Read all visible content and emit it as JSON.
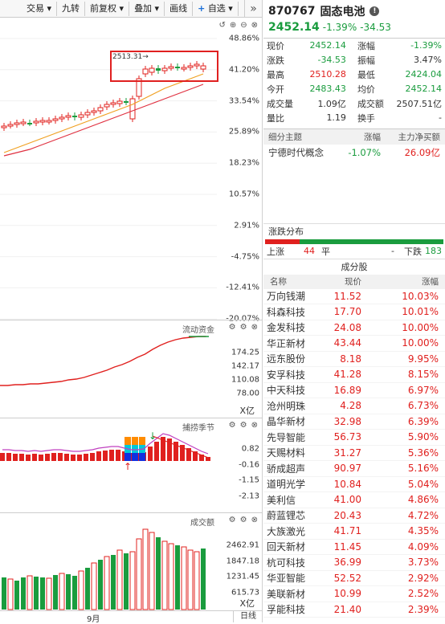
{
  "toolbar": {
    "trade": "交易 ▾",
    "nine": "九转",
    "adjust": "前复权 ▾",
    "overlay": "叠加 ▾",
    "draw": "画线",
    "watch": "自选",
    "more": "»"
  },
  "kline": {
    "y_ticks": [
      "48.86%",
      "41.20%",
      "33.54%",
      "25.89%",
      "18.23%",
      "10.57%",
      "2.91%",
      "-4.75%",
      "-12.41%",
      "-20.07%"
    ],
    "max_label": "2513.31",
    "highlight_color": "#e02020"
  },
  "fund": {
    "title": "流动资金",
    "ticks": [
      "174.25",
      "142.17",
      "110.08",
      "78.00"
    ],
    "unit": "X亿"
  },
  "cycle": {
    "title": "捕捞季节",
    "ticks": [
      "0.82",
      "-0.16",
      "-1.15",
      "-2.13"
    ]
  },
  "volume": {
    "title": "成交额",
    "ticks": [
      "2462.91",
      "1847.18",
      "1231.45",
      "615.73"
    ],
    "unit": "X亿"
  },
  "footer": {
    "month": "9月",
    "period": "日线"
  },
  "quote": {
    "code": "870767",
    "name": "固态电池",
    "info": "!",
    "price": "2452.14",
    "pct": "-1.39%",
    "chg": "-34.53",
    "rows": [
      {
        "k1": "现价",
        "v1": "2452.14",
        "c1": "green",
        "k2": "涨幅",
        "v2": "-1.39%",
        "c2": "green"
      },
      {
        "k1": "涨跌",
        "v1": "-34.53",
        "c1": "green",
        "k2": "振幅",
        "v2": "3.47%",
        "c2": ""
      },
      {
        "k1": "最高",
        "v1": "2510.28",
        "c1": "red",
        "k2": "最低",
        "v2": "2424.04",
        "c2": "green"
      },
      {
        "k1": "今开",
        "v1": "2483.43",
        "c1": "green",
        "k2": "均价",
        "v2": "2452.14",
        "c2": "green"
      },
      {
        "k1": "成交量",
        "v1": "1.09亿",
        "c1": "",
        "k2": "成交额",
        "v2": "2507.51亿",
        "c2": ""
      },
      {
        "k1": "量比",
        "v1": "1.19",
        "c1": "",
        "k2": "换手",
        "v2": "-",
        "c2": ""
      }
    ]
  },
  "theme": {
    "h1": "细分主题",
    "h2": "涨幅",
    "h3": "主力净买额",
    "name": "宁德时代概念",
    "pct": "-1.07%",
    "net": "26.09亿"
  },
  "dist": {
    "title": "涨跌分布",
    "up_label": "上涨",
    "up": "44",
    "flat_label": "平",
    "flat": "-",
    "down_label": "下跌",
    "down": "183"
  },
  "constituents": {
    "title": "成分股",
    "h_name": "名称",
    "h_price": "现价",
    "h_pct": "涨幅",
    "rows": [
      {
        "name": "万向钱潮",
        "price": "11.52",
        "pct": "10.03%"
      },
      {
        "name": "科森科技",
        "price": "17.70",
        "pct": "10.01%"
      },
      {
        "name": "金发科技",
        "price": "24.08",
        "pct": "10.00%"
      },
      {
        "name": "华正新材",
        "price": "43.44",
        "pct": "10.00%"
      },
      {
        "name": "远东股份",
        "price": "8.18",
        "pct": "9.95%"
      },
      {
        "name": "安孚科技",
        "price": "41.28",
        "pct": "8.15%"
      },
      {
        "name": "中天科技",
        "price": "16.89",
        "pct": "6.97%"
      },
      {
        "name": "沧州明珠",
        "price": "4.28",
        "pct": "6.73%"
      },
      {
        "name": "晶华新材",
        "price": "32.98",
        "pct": "6.39%"
      },
      {
        "name": "先导智能",
        "price": "56.73",
        "pct": "5.90%"
      },
      {
        "name": "天赐材料",
        "price": "31.27",
        "pct": "5.36%"
      },
      {
        "name": "骄成超声",
        "price": "90.97",
        "pct": "5.16%"
      },
      {
        "name": "道明光学",
        "price": "10.84",
        "pct": "5.04%"
      },
      {
        "name": "美利信",
        "price": "41.00",
        "pct": "4.86%"
      },
      {
        "name": "蔚蓝锂芯",
        "price": "20.43",
        "pct": "4.72%"
      },
      {
        "name": "大族激光",
        "price": "41.71",
        "pct": "4.35%"
      },
      {
        "name": "回天新材",
        "price": "11.45",
        "pct": "4.09%"
      },
      {
        "name": "杭可科技",
        "price": "36.99",
        "pct": "3.73%"
      },
      {
        "name": "华亚智能",
        "price": "52.52",
        "pct": "2.92%"
      },
      {
        "name": "美联新材",
        "price": "10.99",
        "pct": "2.52%"
      },
      {
        "name": "孚能科技",
        "price": "21.40",
        "pct": "2.39%"
      }
    ]
  }
}
